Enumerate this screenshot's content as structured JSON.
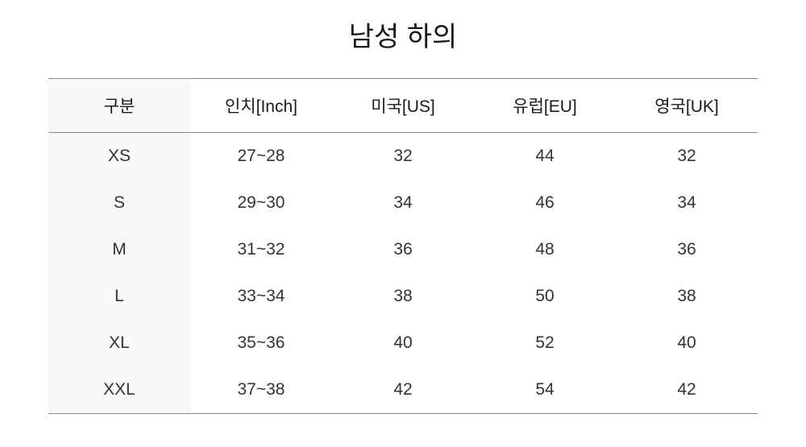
{
  "title": "남성 하의",
  "table": {
    "type": "table",
    "columns": [
      "구분",
      "인치[Inch]",
      "미국[US]",
      "유럽[EU]",
      "영국[UK]"
    ],
    "rows": [
      [
        "XS",
        "27~28",
        "32",
        "44",
        "32"
      ],
      [
        "S",
        "29~30",
        "34",
        "46",
        "34"
      ],
      [
        "M",
        "31~32",
        "36",
        "48",
        "36"
      ],
      [
        "L",
        "33~34",
        "38",
        "50",
        "38"
      ],
      [
        "XL",
        "35~36",
        "40",
        "52",
        "40"
      ],
      [
        "XXL",
        "37~38",
        "42",
        "54",
        "42"
      ]
    ],
    "header_border_color": "#888888",
    "first_col_bg": "#f8f8f8",
    "background_color": "#ffffff",
    "title_fontsize": 34,
    "cell_fontsize": 21,
    "text_color": "#1a1a1a",
    "column_widths_pct": [
      20,
      20,
      20,
      20,
      20
    ]
  }
}
